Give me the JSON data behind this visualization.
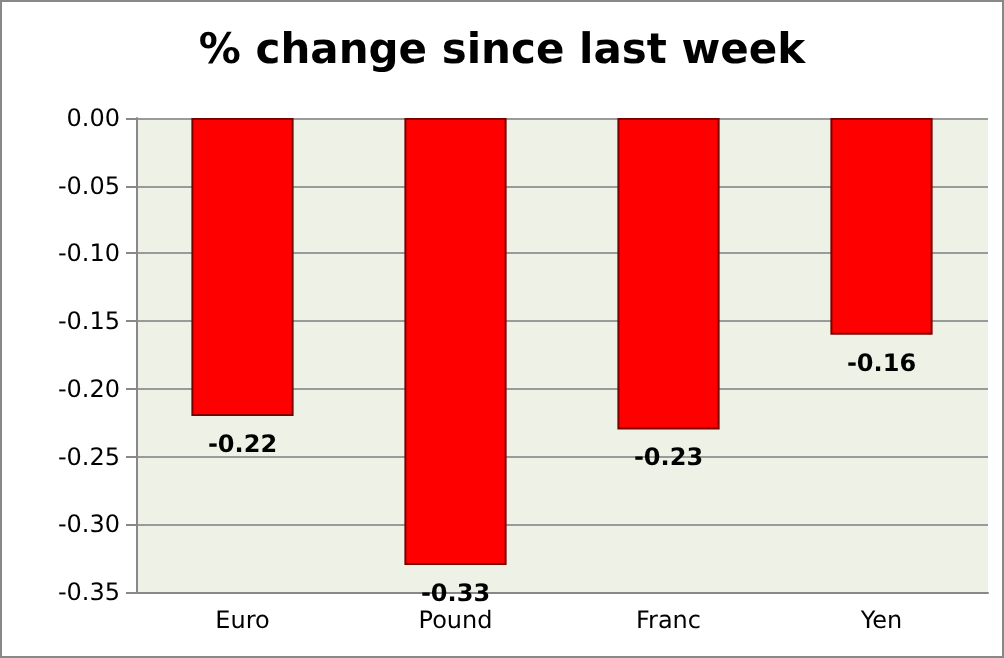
{
  "chart_data": {
    "type": "bar",
    "title": "% change since last week",
    "categories": [
      "Euro",
      "Pound",
      "Franc",
      "Yen"
    ],
    "values": [
      -0.22,
      -0.33,
      -0.23,
      -0.16
    ],
    "color": "#ff0000",
    "ylim": [
      -0.35,
      0
    ],
    "yticks": [
      {
        "value": 0,
        "label": "0.00"
      },
      {
        "value": -0.05,
        "label": "-0.05"
      },
      {
        "value": -0.1,
        "label": "-0.10"
      },
      {
        "value": -0.15,
        "label": "-0.15"
      },
      {
        "value": -0.2,
        "label": "-0.20"
      },
      {
        "value": -0.25,
        "label": "-0.25"
      },
      {
        "value": -0.3,
        "label": "-0.30"
      },
      {
        "value": -0.35,
        "label": "-0.35"
      }
    ],
    "grid": true,
    "data_labels": true
  }
}
